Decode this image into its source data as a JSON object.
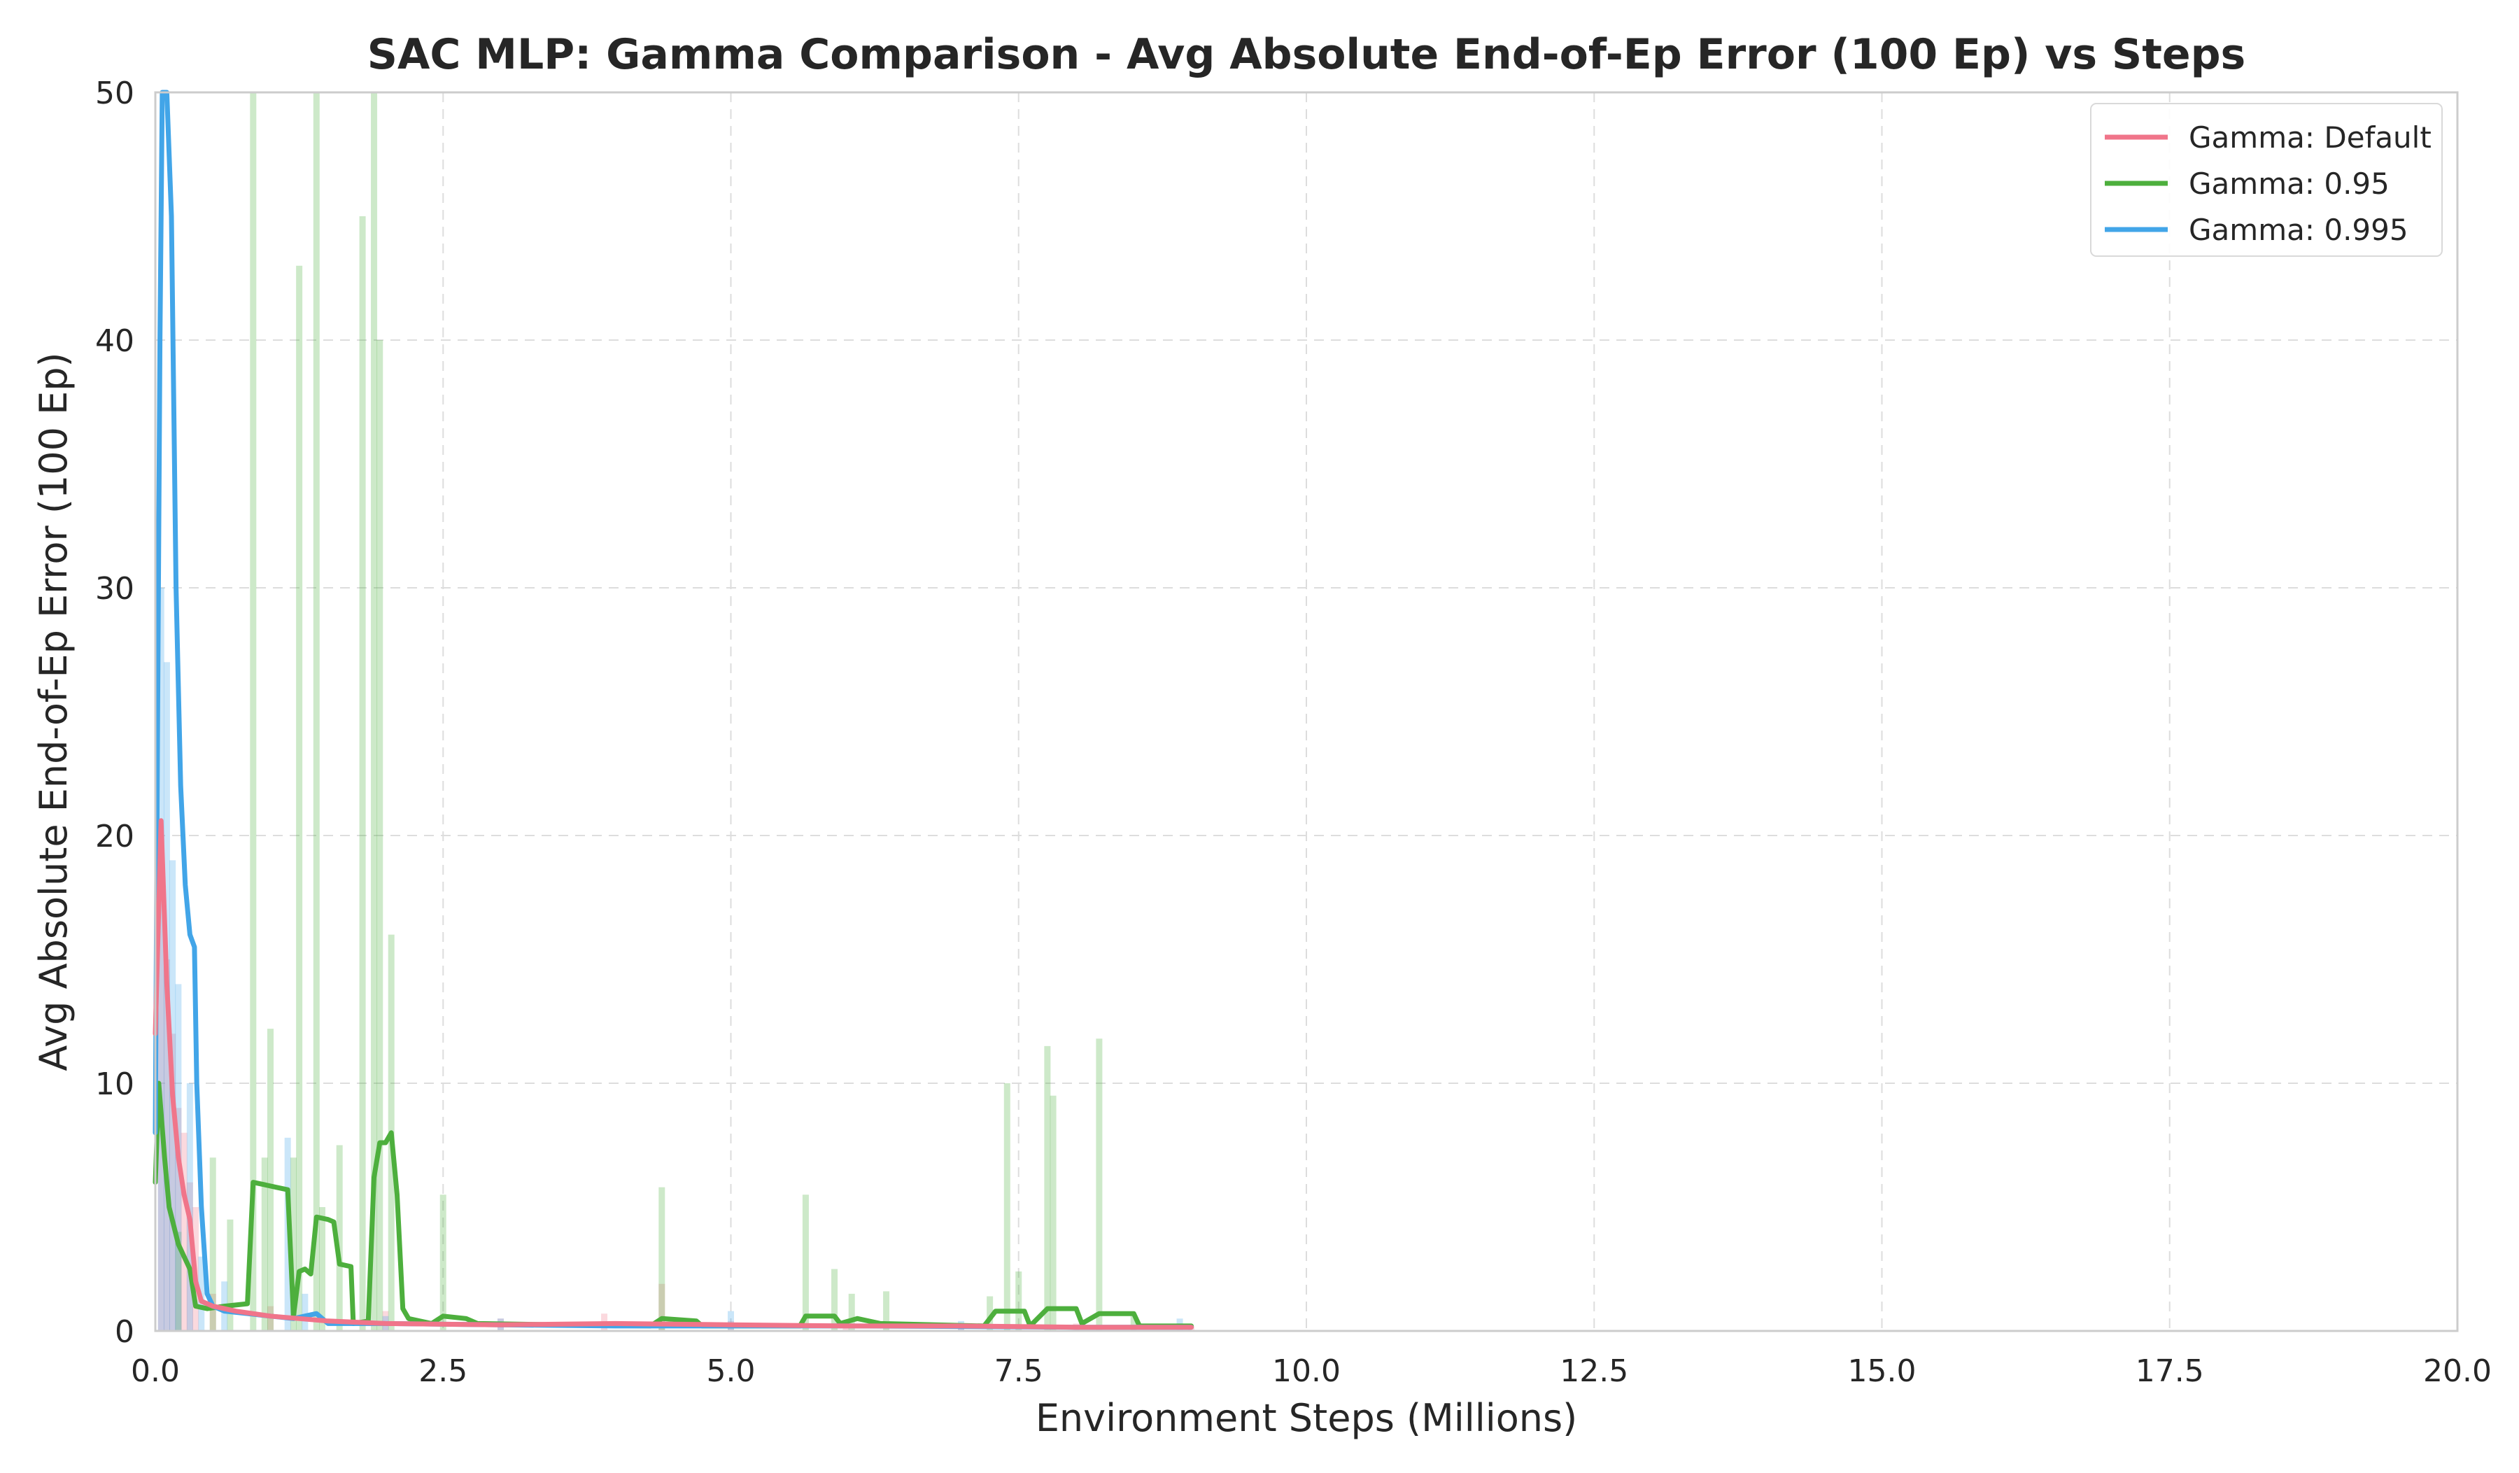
{
  "chart_data": {
    "type": "line",
    "title": "SAC MLP: Gamma Comparison - Avg Absolute End-of-Ep Error (100 Ep) vs Steps",
    "xlabel": "Environment Steps (Millions)",
    "ylabel": "Avg Absolute End-of-Ep Error (100 Ep)",
    "xlim": [
      0,
      20
    ],
    "ylim": [
      0,
      50
    ],
    "xticks": [
      "0.0",
      "2.5",
      "5.0",
      "7.5",
      "10.0",
      "12.5",
      "15.0",
      "17.5",
      "20.0"
    ],
    "yticks": [
      "0",
      "10",
      "20",
      "30",
      "40",
      "50"
    ],
    "grid": true,
    "legend_position": "top-right",
    "series": [
      {
        "name": "Gamma: Default",
        "color": "#f0758a",
        "smoothed": [
          [
            0.0,
            12
          ],
          [
            0.05,
            20.6
          ],
          [
            0.1,
            14
          ],
          [
            0.15,
            9.5
          ],
          [
            0.2,
            7
          ],
          [
            0.25,
            5.5
          ],
          [
            0.3,
            4.5
          ],
          [
            0.35,
            2.0
          ],
          [
            0.4,
            1.2
          ],
          [
            0.5,
            1.0
          ],
          [
            0.7,
            0.8
          ],
          [
            1.0,
            0.6
          ],
          [
            1.5,
            0.4
          ],
          [
            2.0,
            0.3
          ],
          [
            3.0,
            0.25
          ],
          [
            4.0,
            0.3
          ],
          [
            5.0,
            0.25
          ],
          [
            6.0,
            0.2
          ],
          [
            7.0,
            0.2
          ],
          [
            8.0,
            0.15
          ],
          [
            9.0,
            0.15
          ]
        ],
        "raw": [
          [
            0.05,
            20
          ],
          [
            0.1,
            15
          ],
          [
            0.15,
            12
          ],
          [
            0.2,
            9
          ],
          [
            0.25,
            8
          ],
          [
            0.3,
            6
          ],
          [
            0.35,
            5
          ],
          [
            0.5,
            1.5
          ],
          [
            1.0,
            1.0
          ],
          [
            2.0,
            0.8
          ],
          [
            3.0,
            0.5
          ],
          [
            3.9,
            0.7
          ],
          [
            4.4,
            1.9
          ],
          [
            5.0,
            0.4
          ],
          [
            6.0,
            0.3
          ],
          [
            7.0,
            0.3
          ],
          [
            8.0,
            0.3
          ],
          [
            9.0,
            0.2
          ]
        ]
      },
      {
        "name": "Gamma: 0.95",
        "color": "#4daf3d",
        "smoothed": [
          [
            0.0,
            6
          ],
          [
            0.03,
            10
          ],
          [
            0.08,
            7
          ],
          [
            0.12,
            5
          ],
          [
            0.2,
            3.5
          ],
          [
            0.25,
            3.0
          ],
          [
            0.3,
            2.5
          ],
          [
            0.35,
            1.0
          ],
          [
            0.45,
            0.9
          ],
          [
            0.6,
            1.0
          ],
          [
            0.8,
            1.1
          ],
          [
            0.85,
            6.0
          ],
          [
            0.95,
            5.9
          ],
          [
            1.05,
            5.8
          ],
          [
            1.15,
            5.7
          ],
          [
            1.2,
            0.6
          ],
          [
            1.25,
            2.4
          ],
          [
            1.3,
            2.5
          ],
          [
            1.35,
            2.3
          ],
          [
            1.4,
            4.6
          ],
          [
            1.5,
            4.5
          ],
          [
            1.55,
            4.4
          ],
          [
            1.6,
            2.7
          ],
          [
            1.7,
            2.6
          ],
          [
            1.72,
            0.3
          ],
          [
            1.85,
            0.4
          ],
          [
            1.9,
            6.2
          ],
          [
            1.95,
            7.6
          ],
          [
            2.0,
            7.6
          ],
          [
            2.05,
            8.0
          ],
          [
            2.1,
            5.5
          ],
          [
            2.15,
            0.9
          ],
          [
            2.2,
            0.5
          ],
          [
            2.4,
            0.3
          ],
          [
            2.5,
            0.6
          ],
          [
            2.7,
            0.5
          ],
          [
            2.8,
            0.3
          ],
          [
            3.5,
            0.25
          ],
          [
            4.3,
            0.2
          ],
          [
            4.4,
            0.5
          ],
          [
            4.7,
            0.4
          ],
          [
            4.75,
            0.2
          ],
          [
            5.6,
            0.2
          ],
          [
            5.65,
            0.6
          ],
          [
            5.9,
            0.6
          ],
          [
            5.95,
            0.3
          ],
          [
            6.1,
            0.5
          ],
          [
            6.3,
            0.3
          ],
          [
            7.2,
            0.2
          ],
          [
            7.3,
            0.8
          ],
          [
            7.55,
            0.8
          ],
          [
            7.6,
            0.2
          ],
          [
            7.75,
            0.9
          ],
          [
            8.0,
            0.9
          ],
          [
            8.05,
            0.3
          ],
          [
            8.2,
            0.7
          ],
          [
            8.5,
            0.7
          ],
          [
            8.55,
            0.2
          ],
          [
            9.0,
            0.2
          ]
        ],
        "raw": [
          [
            0.2,
            4
          ],
          [
            0.5,
            7
          ],
          [
            0.65,
            4.5
          ],
          [
            0.85,
            50
          ],
          [
            0.95,
            7
          ],
          [
            1.0,
            12.2
          ],
          [
            1.2,
            7
          ],
          [
            1.25,
            43
          ],
          [
            1.4,
            50
          ],
          [
            1.45,
            5
          ],
          [
            1.6,
            7.5
          ],
          [
            1.8,
            45
          ],
          [
            1.9,
            50
          ],
          [
            1.95,
            40
          ],
          [
            2.05,
            16
          ],
          [
            2.5,
            5.5
          ],
          [
            4.4,
            5.8
          ],
          [
            5.65,
            5.5
          ],
          [
            5.9,
            2.5
          ],
          [
            6.05,
            1.5
          ],
          [
            6.35,
            1.6
          ],
          [
            7.25,
            1.4
          ],
          [
            7.4,
            10
          ],
          [
            7.5,
            2.4
          ],
          [
            7.75,
            11.5
          ],
          [
            7.8,
            9.5
          ],
          [
            8.2,
            11.8
          ],
          [
            8.5,
            0.6
          ]
        ]
      },
      {
        "name": "Gamma: 0.995",
        "color": "#42a5e8",
        "smoothed": [
          [
            0.0,
            8
          ],
          [
            0.02,
            25
          ],
          [
            0.04,
            40
          ],
          [
            0.06,
            50
          ],
          [
            0.1,
            50
          ],
          [
            0.14,
            45
          ],
          [
            0.18,
            30
          ],
          [
            0.22,
            22
          ],
          [
            0.26,
            18
          ],
          [
            0.3,
            16
          ],
          [
            0.34,
            15.5
          ],
          [
            0.36,
            10
          ],
          [
            0.4,
            5
          ],
          [
            0.45,
            1.5
          ],
          [
            0.5,
            1.0
          ],
          [
            0.6,
            0.8
          ],
          [
            0.8,
            0.7
          ],
          [
            1.0,
            0.6
          ],
          [
            1.2,
            0.5
          ],
          [
            1.4,
            0.7
          ],
          [
            1.5,
            0.3
          ],
          [
            2.0,
            0.3
          ],
          [
            3.0,
            0.25
          ],
          [
            4.0,
            0.2
          ],
          [
            5.0,
            0.2
          ],
          [
            6.0,
            0.2
          ],
          [
            7.0,
            0.18
          ],
          [
            8.0,
            0.15
          ],
          [
            9.0,
            0.15
          ]
        ],
        "raw": [
          [
            0.05,
            30
          ],
          [
            0.1,
            27
          ],
          [
            0.15,
            19
          ],
          [
            0.2,
            14
          ],
          [
            0.3,
            10
          ],
          [
            0.4,
            3
          ],
          [
            0.6,
            2
          ],
          [
            1.15,
            7.8
          ],
          [
            1.3,
            1.5
          ],
          [
            2.0,
            0.6
          ],
          [
            3.0,
            0.5
          ],
          [
            5.0,
            0.8
          ],
          [
            7.0,
            0.4
          ],
          [
            8.9,
            0.5
          ]
        ]
      }
    ]
  }
}
